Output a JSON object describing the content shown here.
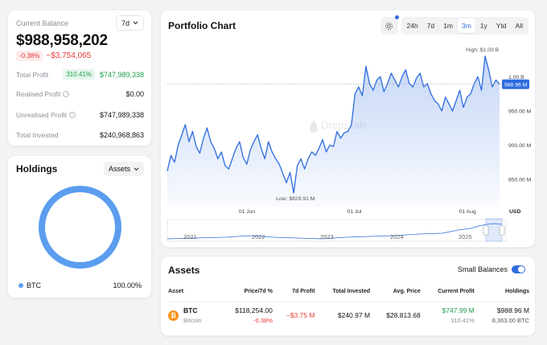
{
  "balance": {
    "label": "Current Balance",
    "range": "7d",
    "value": "$988,958,202",
    "change_pct": "-0.38%",
    "change_abs": "−$3,754,065",
    "total_profit_label": "Total Profit",
    "total_profit_pct": "310.41%",
    "total_profit_value": "$747,989,338",
    "realised_label": "Realised Profit",
    "realised_value": "$0.00",
    "unrealised_label": "Unrealised Profit",
    "unrealised_value": "$747,989,338",
    "invested_label": "Total Invested",
    "invested_value": "$240,968,863"
  },
  "holdings": {
    "title": "Holdings",
    "filter": "Assets",
    "legend_name": "BTC",
    "legend_pct": "100.00%",
    "color": "#5b9def"
  },
  "chart": {
    "title": "Portfolio Chart",
    "tabs": [
      "24h",
      "7d",
      "1m",
      "3m",
      "1y",
      "Ytd",
      "All"
    ],
    "active_tab": "3m",
    "watermark": "DropsTab",
    "currency": "USD"
  },
  "chart_data": {
    "type": "area",
    "y_ticks": [
      "1.00 B",
      "950.00 M",
      "900.00 M",
      "850.00 M"
    ],
    "y_tick_values": [
      1000,
      950,
      900,
      850
    ],
    "ylim": [
      810,
      1045
    ],
    "x_ticks": [
      "01 Jun",
      "01 Jul",
      "01 Aug"
    ],
    "x_tick_positions": [
      22,
      52,
      83
    ],
    "high_label": "High: $1.03 B",
    "low_label": "Low: $829.91 M",
    "current_label": "988.96 M",
    "current_value": 988.96,
    "x": [
      0,
      1,
      2,
      3,
      4,
      5,
      6,
      7,
      8,
      9,
      10,
      11,
      12,
      13,
      14,
      15,
      16,
      17,
      18,
      19,
      20,
      21,
      22,
      23,
      24,
      25,
      26,
      27,
      28,
      29,
      30,
      31,
      32,
      33,
      34,
      35,
      36,
      37,
      38,
      39,
      40,
      41,
      42,
      43,
      44,
      45,
      46,
      47,
      48,
      49,
      50,
      51,
      52,
      53,
      54,
      55,
      56,
      57,
      58,
      59,
      60,
      61,
      62,
      63,
      64,
      65,
      66,
      67,
      68,
      69,
      70,
      71,
      72,
      73,
      74,
      75,
      76,
      77,
      78,
      79,
      80,
      81,
      82,
      83,
      84,
      85,
      86,
      87,
      88,
      89,
      90,
      91,
      92
    ],
    "values": [
      862,
      885,
      875,
      900,
      915,
      930,
      905,
      920,
      898,
      888,
      910,
      925,
      905,
      895,
      880,
      890,
      870,
      865,
      880,
      895,
      905,
      882,
      872,
      893,
      905,
      915,
      895,
      880,
      905,
      890,
      880,
      872,
      858,
      845,
      860,
      830,
      870,
      880,
      865,
      880,
      890,
      885,
      895,
      908,
      890,
      900,
      898,
      920,
      910,
      918,
      920,
      930,
      975,
      985,
      972,
      1015,
      990,
      980,
      995,
      1000,
      978,
      990,
      1005,
      995,
      985,
      1000,
      1010,
      990,
      985,
      998,
      1005,
      985,
      990,
      975,
      965,
      960,
      950,
      970,
      960,
      950,
      965,
      980,
      955,
      970,
      975,
      990,
      1000,
      980,
      1030,
      1010,
      985,
      995,
      989
    ],
    "navigator_years": [
      "2021",
      "2022",
      "2023",
      "2024",
      "2025"
    ]
  },
  "assets": {
    "title": "Assets",
    "small_balances_label": "Small Balances",
    "columns": [
      "Asset",
      "Price/7d %",
      "7d Profit",
      "Total Invested",
      "Avg. Price",
      "Current Profit",
      "Holdings"
    ],
    "rows": [
      {
        "symbol": "BTC",
        "name": "Bitcoin",
        "price": "$118,254.00",
        "price_change": "-0.38%",
        "profit_7d": "−$3.75 M",
        "total_invested": "$240.97 M",
        "avg_price": "$28,813.68",
        "current_profit": "$747.99 M",
        "current_profit_pct": "310.41%",
        "holdings_value": "$988.96 M",
        "holdings_amount": "8,363.00 BTC"
      }
    ]
  },
  "colors": {
    "accent": "#2d6cdf",
    "positive": "#1e9e4a",
    "negative": "#e53935"
  }
}
